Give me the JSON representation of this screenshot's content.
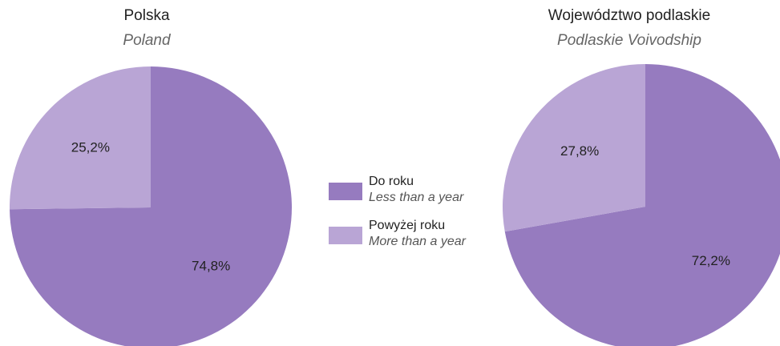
{
  "chart_data": [
    {
      "type": "pie",
      "title": "Polska",
      "subtitle": "Poland",
      "values": [
        74.8,
        25.2
      ],
      "value_labels": [
        "74,8%",
        "25,2%"
      ]
    },
    {
      "type": "pie",
      "title": "Województwo podlaskie",
      "subtitle": "Podlaskie Voivodship",
      "values": [
        72.2,
        27.8
      ],
      "value_labels": [
        "72,2%",
        "27,8%"
      ]
    }
  ],
  "legend": [
    {
      "name": "Do roku",
      "name_en": "Less than a year",
      "color": "#967bbf"
    },
    {
      "name": "Powyżej roku",
      "name_en": "More than a year",
      "color": "#b9a5d5"
    }
  ]
}
